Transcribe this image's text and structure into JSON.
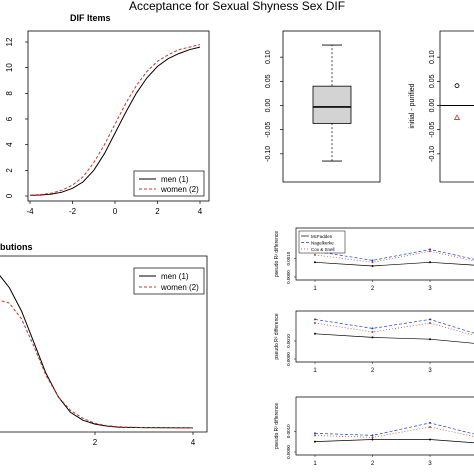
{
  "title": "Acceptance for Sexual Shyness Sex DIF",
  "chart_data": [
    {
      "type": "line",
      "title": "DIF Items",
      "xlim": [
        -4,
        4
      ],
      "ylim": [
        0,
        12
      ],
      "x_ticks": [
        "-4",
        "-2",
        "0",
        "2",
        "4"
      ],
      "y_ticks": [
        "0",
        "2",
        "4",
        "6",
        "8",
        "10",
        "12"
      ],
      "x": [
        -4,
        -3.5,
        -3,
        -2.5,
        -2,
        -1.5,
        -1,
        -0.5,
        0,
        0.5,
        1,
        1.5,
        2,
        2.5,
        3,
        3.5,
        4
      ],
      "series": [
        {
          "name": "men (1)",
          "style": "solid",
          "color": "#000000",
          "values": [
            0.05,
            0.08,
            0.15,
            0.3,
            0.6,
            1.1,
            2.0,
            3.3,
            4.9,
            6.5,
            8.0,
            9.2,
            10.1,
            10.7,
            11.1,
            11.4,
            11.6
          ]
        },
        {
          "name": "women (2)",
          "style": "dashed",
          "color": "#c0392b",
          "values": [
            0.07,
            0.12,
            0.22,
            0.45,
            0.85,
            1.5,
            2.6,
            4.0,
            5.6,
            7.2,
            8.6,
            9.7,
            10.5,
            11.0,
            11.4,
            11.6,
            11.8
          ]
        }
      ],
      "legend": "bottom-right",
      "legend_labels": [
        "men (1)",
        "women (2)"
      ]
    },
    {
      "type": "box",
      "y_ticks": [
        "-0.10",
        "-0.05",
        "0.00",
        "0.05",
        "0.10"
      ],
      "ylim": [
        -0.15,
        0.15
      ],
      "whisker_low": -0.115,
      "q1": -0.037,
      "median": -0.003,
      "q3": 0.04,
      "whisker_high": 0.125
    },
    {
      "type": "scatter",
      "ylabel": "initial - purified",
      "y_ticks": [
        "-0.10",
        "-0.05",
        "0.00",
        "0.05",
        "0.10"
      ],
      "ylim": [
        -0.15,
        0.15
      ],
      "points": [
        {
          "y": 0.041,
          "marker": "circle",
          "color": "#000000"
        },
        {
          "y": -0.025,
          "marker": "triangle",
          "color": "#c0392b"
        }
      ],
      "hline": 0.0
    },
    {
      "type": "line",
      "title": "butions",
      "xlim": [
        0,
        4
      ],
      "x_ticks": [
        "2",
        "4"
      ],
      "x": [
        0,
        0.25,
        0.5,
        0.75,
        1,
        1.25,
        1.5,
        1.75,
        2,
        2.25,
        2.5,
        3,
        3.5,
        4
      ],
      "series": [
        {
          "name": "men (1)",
          "style": "solid",
          "color": "#000000",
          "values": [
            0.4,
            0.36,
            0.3,
            0.22,
            0.14,
            0.08,
            0.04,
            0.02,
            0.01,
            0.005,
            0.002,
            0.001,
            0.0005,
            0.0002
          ]
        },
        {
          "name": "women (2)",
          "style": "dashed",
          "color": "#c0392b",
          "values": [
            0.33,
            0.32,
            0.28,
            0.21,
            0.135,
            0.08,
            0.045,
            0.025,
            0.012,
            0.006,
            0.003,
            0.001,
            0.0005,
            0.0002
          ]
        }
      ],
      "legend": "top-right",
      "legend_labels": [
        "men (1)",
        "women (2)"
      ]
    },
    {
      "type": "line",
      "ylabel": "pseudo R² difference",
      "x_ticks": [
        "1",
        "2",
        "3"
      ],
      "y_ticks": [
        "0.0000",
        "0.0010"
      ],
      "legend": "top-left",
      "legend_labels": [
        "McFadden",
        "Nagelkerke",
        "Cox & Snell"
      ],
      "panels": [
        {
          "x": [
            1,
            2,
            3,
            4
          ],
          "series": [
            {
              "name": "McFadden",
              "values": [
                0.0008,
                0.0006,
                0.0008,
                0.0006
              ]
            },
            {
              "name": "Nagelkerke",
              "values": [
                0.0014,
                0.0009,
                0.0015,
                0.0008
              ]
            },
            {
              "name": "Cox & Snell",
              "values": [
                0.0012,
                0.0008,
                0.0014,
                0.0007
              ]
            }
          ]
        },
        {
          "x": [
            1,
            2,
            3,
            4
          ],
          "series": [
            {
              "name": "McFadden",
              "values": [
                0.0014,
                0.0012,
                0.0011,
                0.0008
              ]
            },
            {
              "name": "Nagelkerke",
              "values": [
                0.0022,
                0.0017,
                0.0022,
                0.0012
              ]
            },
            {
              "name": "Cox & Snell",
              "values": [
                0.002,
                0.0015,
                0.002,
                0.0011
              ]
            }
          ]
        },
        {
          "x": [
            1,
            2,
            3,
            4
          ],
          "series": [
            {
              "name": "McFadden",
              "values": [
                0.0005,
                0.0006,
                0.0006,
                0.0004
              ]
            },
            {
              "name": "Nagelkerke",
              "values": [
                0.0009,
                0.0008,
                0.0014,
                0.0007
              ]
            },
            {
              "name": "Cox & Snell",
              "values": [
                0.0008,
                0.0007,
                0.0012,
                0.0006
              ]
            }
          ]
        }
      ]
    }
  ]
}
